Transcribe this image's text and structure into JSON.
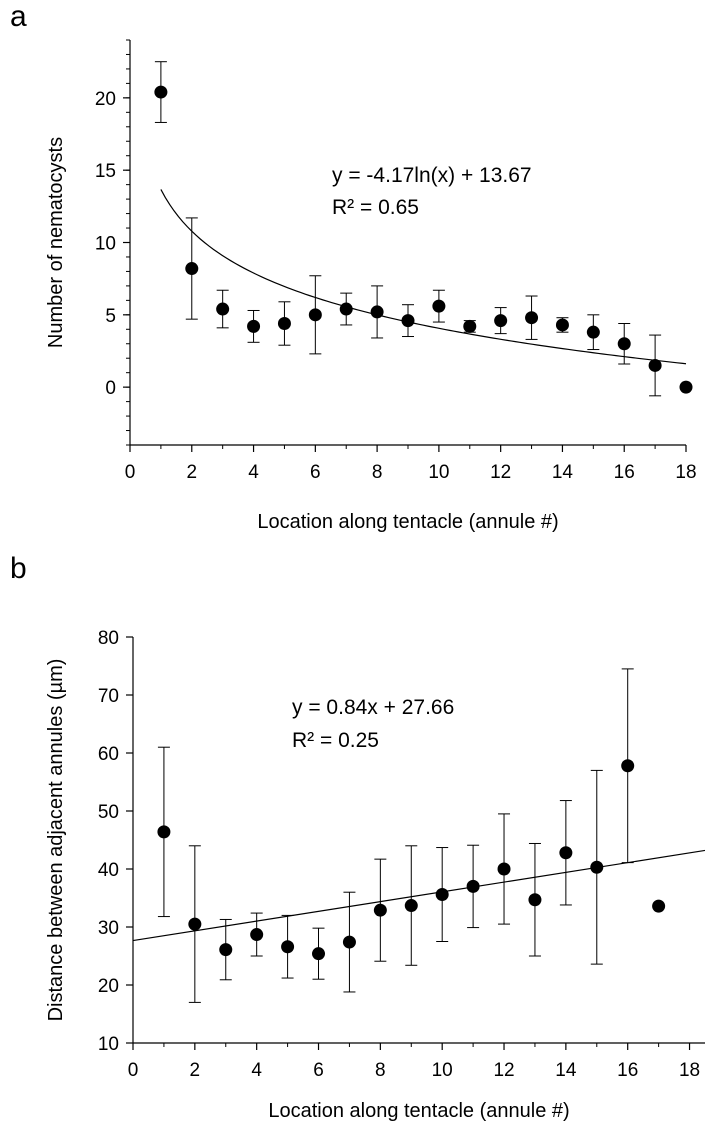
{
  "panels": {
    "a": {
      "letter": "a"
    },
    "b": {
      "letter": "b"
    }
  },
  "chart_data": [
    {
      "type": "scatter",
      "panel": "a",
      "xlabel": "Location along tentacle (annule #)",
      "ylabel": "Number of nematocysts",
      "xlim": [
        0,
        18
      ],
      "ylim": [
        -4,
        24
      ],
      "xticks": [
        0,
        2,
        4,
        6,
        8,
        10,
        12,
        14,
        16,
        18
      ],
      "yticks": [
        0,
        5,
        10,
        15,
        20
      ],
      "grid": false,
      "marker_color": "#000000",
      "series": [
        {
          "x": [
            1,
            2,
            3,
            4,
            5,
            6,
            7,
            8,
            9,
            10,
            11,
            12,
            13,
            14,
            15,
            16,
            17,
            18
          ],
          "values": [
            20.4,
            8.2,
            5.4,
            4.2,
            4.4,
            5.0,
            5.4,
            5.2,
            4.6,
            5.6,
            4.2,
            4.6,
            4.8,
            4.3,
            3.8,
            3.0,
            1.5,
            0.0
          ],
          "error": [
            2.1,
            3.5,
            1.3,
            1.1,
            1.5,
            2.7,
            1.1,
            1.8,
            1.1,
            1.1,
            0.4,
            0.9,
            1.5,
            0.5,
            1.2,
            1.4,
            2.1,
            0.0
          ]
        }
      ],
      "trendline": {
        "kind": "log",
        "a": -4.17,
        "b": 13.67,
        "x_range": [
          1,
          18
        ],
        "equation": "y = -4.17ln(x) + 13.67",
        "r2": "R² = 0.65"
      }
    },
    {
      "type": "scatter",
      "panel": "b",
      "xlabel": "Location along tentacle (annule #)",
      "ylabel": "Distance between adjacent annules (µm)",
      "xlim": [
        0,
        18.5
      ],
      "ylim": [
        10,
        80
      ],
      "xticks": [
        0,
        2,
        4,
        6,
        8,
        10,
        12,
        14,
        16,
        18
      ],
      "yticks": [
        10,
        20,
        30,
        40,
        50,
        60,
        70,
        80
      ],
      "grid": false,
      "marker_color": "#000000",
      "series": [
        {
          "x": [
            1,
            2,
            3,
            4,
            5,
            6,
            7,
            8,
            9,
            10,
            11,
            12,
            13,
            14,
            15,
            16,
            17
          ],
          "values": [
            46.4,
            30.5,
            26.1,
            28.7,
            26.6,
            25.4,
            27.4,
            32.9,
            33.7,
            35.6,
            37.0,
            40.0,
            34.7,
            42.8,
            40.3,
            57.8,
            33.6
          ],
          "error": [
            14.6,
            13.5,
            5.2,
            3.7,
            5.4,
            4.4,
            8.6,
            8.8,
            10.3,
            8.1,
            7.1,
            9.5,
            9.7,
            9.0,
            16.7,
            16.7,
            0.0
          ]
        }
      ],
      "trendline": {
        "kind": "linear",
        "a": 0.84,
        "b": 27.66,
        "x_range": [
          0,
          18.5
        ],
        "equation": "y = 0.84x + 27.66",
        "r2": "R² = 0.25"
      }
    }
  ]
}
